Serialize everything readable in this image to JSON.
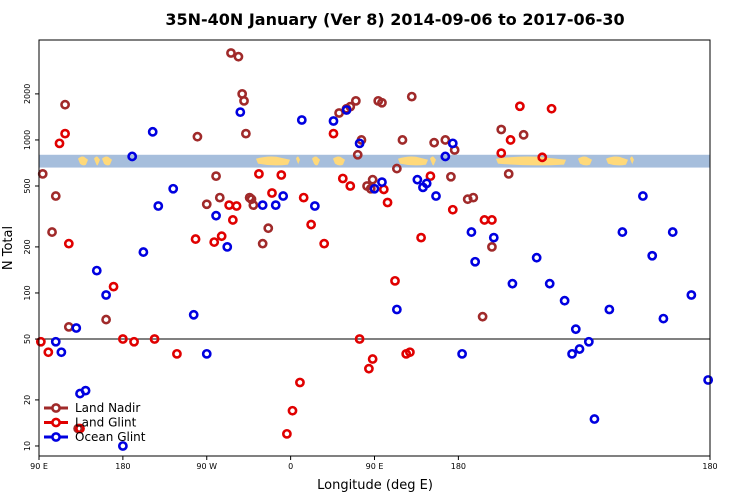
{
  "chart_data": {
    "type": "scatter",
    "title": "35N-40N January (Ver 8)   2014-09-06 to 2017-06-30",
    "xlabel": "Longitude (deg E)",
    "ylabel": "N Total",
    "xlim": [
      90,
      450
    ],
    "ylim": [
      8.6,
      4500
    ],
    "yscale": "log",
    "x_ticks": [
      {
        "value": 90,
        "label": "90 E"
      },
      {
        "value": 135,
        "label": "180"
      },
      {
        "value": 180,
        "label": "90 W"
      },
      {
        "value": 225,
        "label": "0"
      },
      {
        "value": 270,
        "label": "90 E"
      },
      {
        "value": 315,
        "label": "180"
      }
    ],
    "x_ticks_right": {
      "value": 450,
      "label": "180"
    },
    "y_ticks": [
      10,
      20,
      50,
      100,
      200,
      500,
      1000,
      2000
    ],
    "reference_line": 50,
    "map_band": {
      "y_low": 660,
      "y_high": 800,
      "ocean_color": "#a6bedc",
      "land_color": "#ffd97a"
    },
    "legend": {
      "position": "bottom-left"
    },
    "series": [
      {
        "name": "Land Nadir",
        "color": "#a02a2a",
        "x": [
          92,
          97,
          99,
          104,
          106,
          111,
          126,
          175,
          180,
          185,
          187,
          193,
          197,
          199,
          200,
          201,
          203,
          204,
          205,
          210,
          213,
          251,
          255,
          257,
          260,
          261,
          263,
          266,
          268,
          269,
          272,
          274,
          282,
          285,
          290,
          302,
          308,
          311,
          313,
          320,
          323,
          328,
          333,
          338,
          342,
          350
        ],
        "y": [
          600,
          250,
          430,
          1700,
          60,
          13,
          67,
          1050,
          380,
          580,
          420,
          3700,
          3500,
          2000,
          1800,
          1100,
          420,
          410,
          375,
          210,
          265,
          1500,
          1600,
          1650,
          1800,
          800,
          1000,
          500,
          480,
          550,
          1800,
          1750,
          650,
          1000,
          1920,
          960,
          1000,
          575,
          860,
          410,
          420,
          70,
          200,
          1170,
          600,
          1080
        ]
      },
      {
        "name": "Land Glint",
        "color": "#e00000",
        "x": [
          91,
          95,
          101,
          104,
          106,
          112,
          130,
          135,
          141,
          152,
          164,
          174,
          184,
          188,
          192,
          194,
          196,
          208,
          215,
          220,
          223,
          226,
          230,
          232,
          236,
          243,
          248,
          253,
          257,
          262,
          267,
          269,
          275,
          277,
          281,
          287,
          289,
          295,
          300,
          312,
          329,
          333,
          338,
          343,
          348,
          360,
          365
        ],
        "y": [
          48,
          41,
          950,
          1100,
          210,
          13,
          110,
          50,
          48,
          50,
          40,
          225,
          215,
          235,
          375,
          300,
          370,
          600,
          450,
          590,
          12,
          17,
          26,
          420,
          280,
          210,
          1100,
          560,
          500,
          50,
          32,
          37,
          475,
          390,
          120,
          40,
          41,
          230,
          580,
          350,
          300,
          300,
          820,
          1000,
          1660,
          770,
          1600
        ]
      },
      {
        "name": "Ocean Glint",
        "color": "#0000e0",
        "x": [
          99,
          102,
          110,
          112,
          115,
          121,
          126,
          135,
          140,
          146,
          151,
          154,
          162,
          173,
          180,
          185,
          191,
          198,
          210,
          217,
          221,
          231,
          238,
          248,
          255,
          262,
          270,
          274,
          282,
          293,
          296,
          298,
          303,
          308,
          312,
          317,
          322,
          324,
          334,
          344,
          357,
          364,
          372,
          376,
          378,
          380,
          385,
          388,
          396,
          403,
          414,
          419,
          425,
          430,
          440,
          449
        ],
        "y": [
          48,
          41,
          59,
          22,
          23,
          140,
          97,
          10,
          780,
          185,
          1130,
          370,
          480,
          72,
          40,
          320,
          200,
          1520,
          375,
          375,
          430,
          1350,
          370,
          1330,
          1570,
          950,
          480,
          530,
          78,
          550,
          490,
          520,
          430,
          780,
          950,
          40,
          250,
          160,
          230,
          115,
          170,
          115,
          89,
          40,
          58,
          43,
          48,
          15,
          78,
          250,
          430,
          175,
          68,
          250,
          97,
          27
        ]
      }
    ]
  }
}
